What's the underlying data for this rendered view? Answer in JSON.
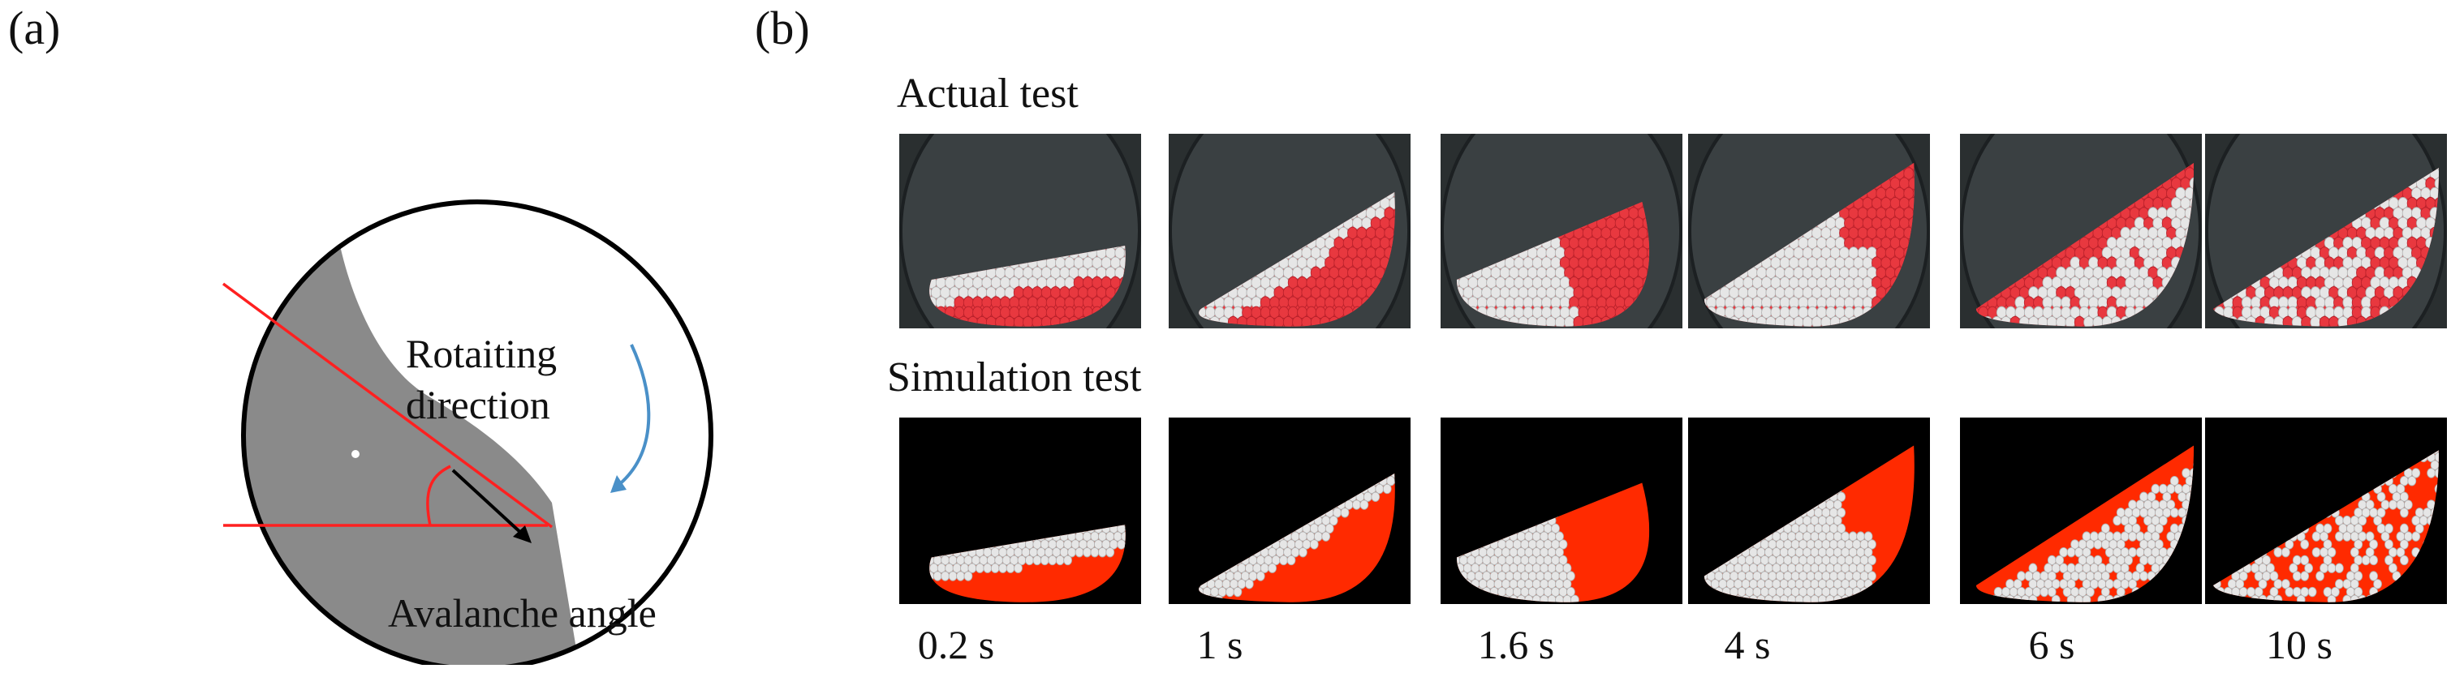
{
  "panel_a": {
    "label": "(a)",
    "rotating_text_line1": "Rotaiting",
    "rotating_text_line2": "direction",
    "avalanche_text": "Avalanche angle"
  },
  "panel_b": {
    "label": "(b)",
    "actual_title": "Actual test",
    "simulation_title": "Simulation test",
    "times": [
      "0.2 s",
      "1 s",
      "1.6 s",
      "4 s",
      "6 s",
      "10 s"
    ]
  },
  "colors": {
    "bed_gray": "#8a8a8a",
    "red_line": "#ff2020",
    "arrow_blue": "#4a90c8",
    "particle_red": "#e8383f",
    "sim_red": "#ff2a00",
    "particle_white": "#e6e6e6"
  }
}
